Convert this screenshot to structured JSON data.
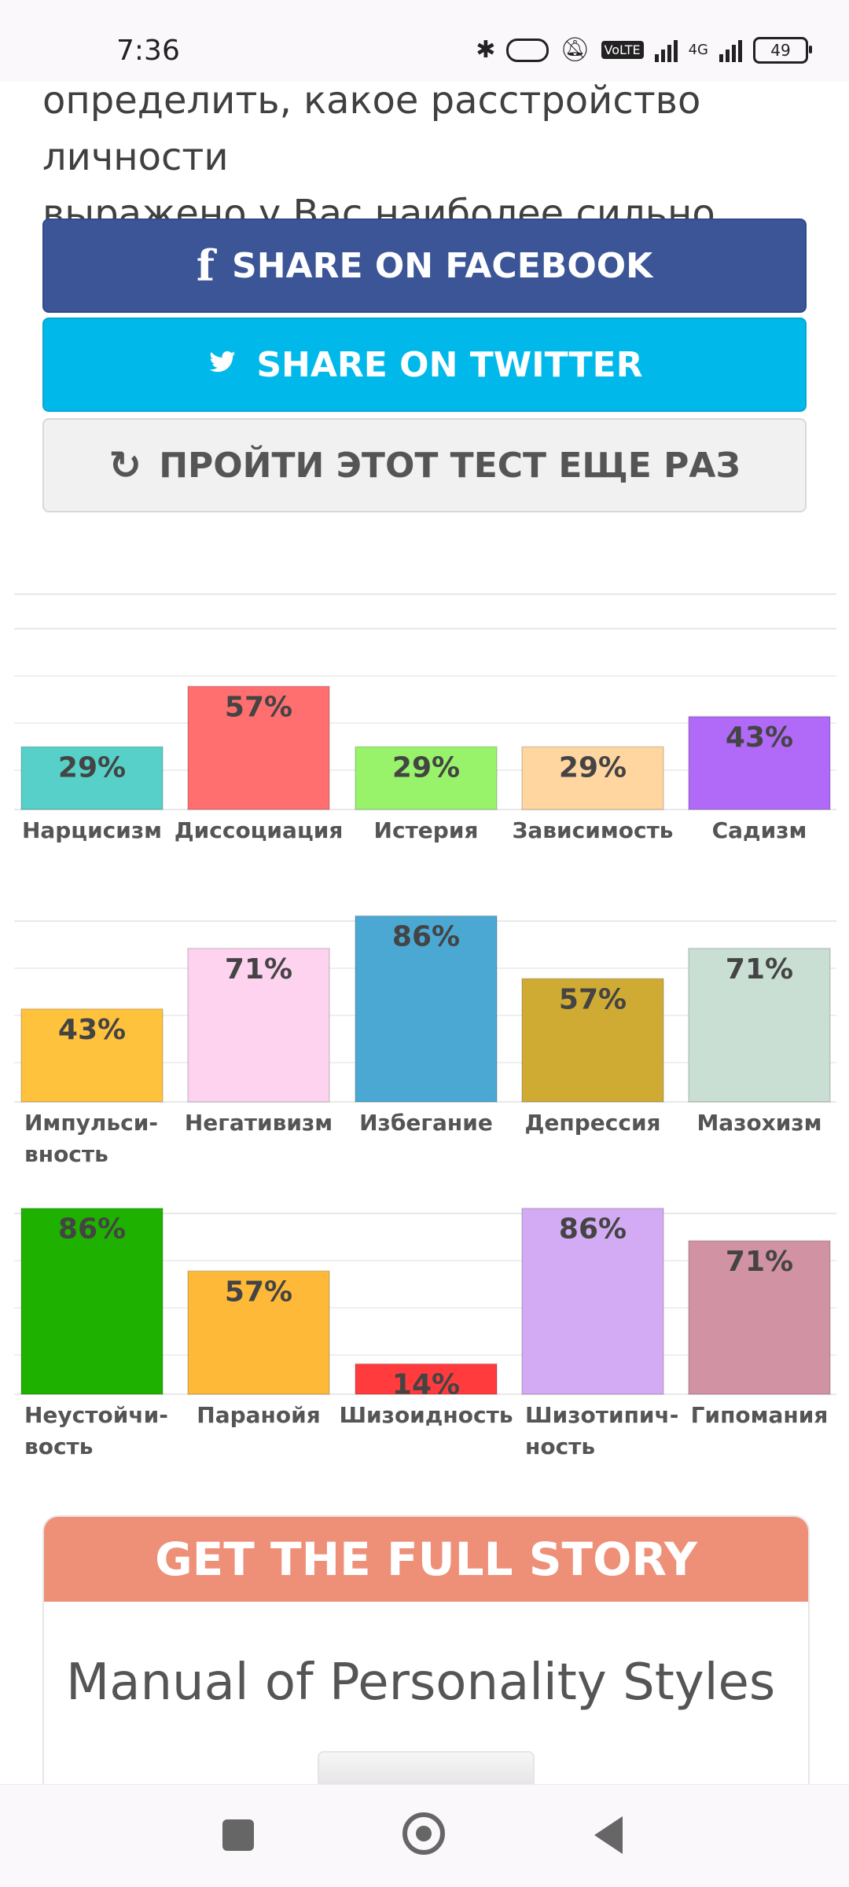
{
  "status": {
    "time": "7:36",
    "battery": "49",
    "net": "4G",
    "volte": "VoLTE"
  },
  "intro_lines": [
    "определить, какое расстройство личности",
    "выражено у Вас наиболее сильно."
  ],
  "buttons": {
    "facebook": "SHARE ON FACEBOOK",
    "twitter": "SHARE ON TWITTER",
    "retry": "ПРОЙТИ ЭТОТ ТЕСТ ЕЩЕ РАЗ"
  },
  "chart_data": {
    "type": "bar",
    "ylim": [
      0,
      100
    ],
    "rows": [
      {
        "categories": [
          "Нарцисизм",
          "Диссоциация",
          "Истерия",
          "Зависимость",
          "Садизм"
        ],
        "values": [
          29,
          57,
          29,
          29,
          43
        ],
        "colors": [
          "#56d0c8",
          "#ff6f70",
          "#98f36a",
          "#ffd5a0",
          "#b06af7"
        ]
      },
      {
        "categories": [
          "Импульсивность",
          "Негативизм",
          "Избегание",
          "Депрессия",
          "Мазохизм"
        ],
        "label_lines": [
          [
            "Импульси-",
            "вность"
          ],
          [
            "Негативизм"
          ],
          [
            "Избегание"
          ],
          [
            "Депрессия"
          ],
          [
            "Мазохизм"
          ]
        ],
        "values": [
          43,
          71,
          86,
          57,
          71
        ],
        "colors": [
          "#ffc23d",
          "#fdd3f0",
          "#4aa8d3",
          "#d0ab33",
          "#c9dfd4"
        ]
      },
      {
        "categories": [
          "Неустойчивость",
          "Паранойя",
          "Шизоидность",
          "Шизотипичность",
          "Гипомания"
        ],
        "label_lines": [
          [
            "Неустойчи-",
            "вость"
          ],
          [
            "Паранойя"
          ],
          [
            "Шизоидность"
          ],
          [
            "Шизотипич-",
            "ность"
          ],
          [
            "Гипомания"
          ]
        ],
        "values": [
          86,
          57,
          14,
          86,
          71
        ],
        "colors": [
          "#1fb100",
          "#ffb938",
          "#ff3b3d",
          "#d3abf4",
          "#d192a4"
        ]
      }
    ]
  },
  "footer": {
    "heading": "GET THE FULL STORY",
    "manual_title": "Manual of Personality Styles"
  }
}
